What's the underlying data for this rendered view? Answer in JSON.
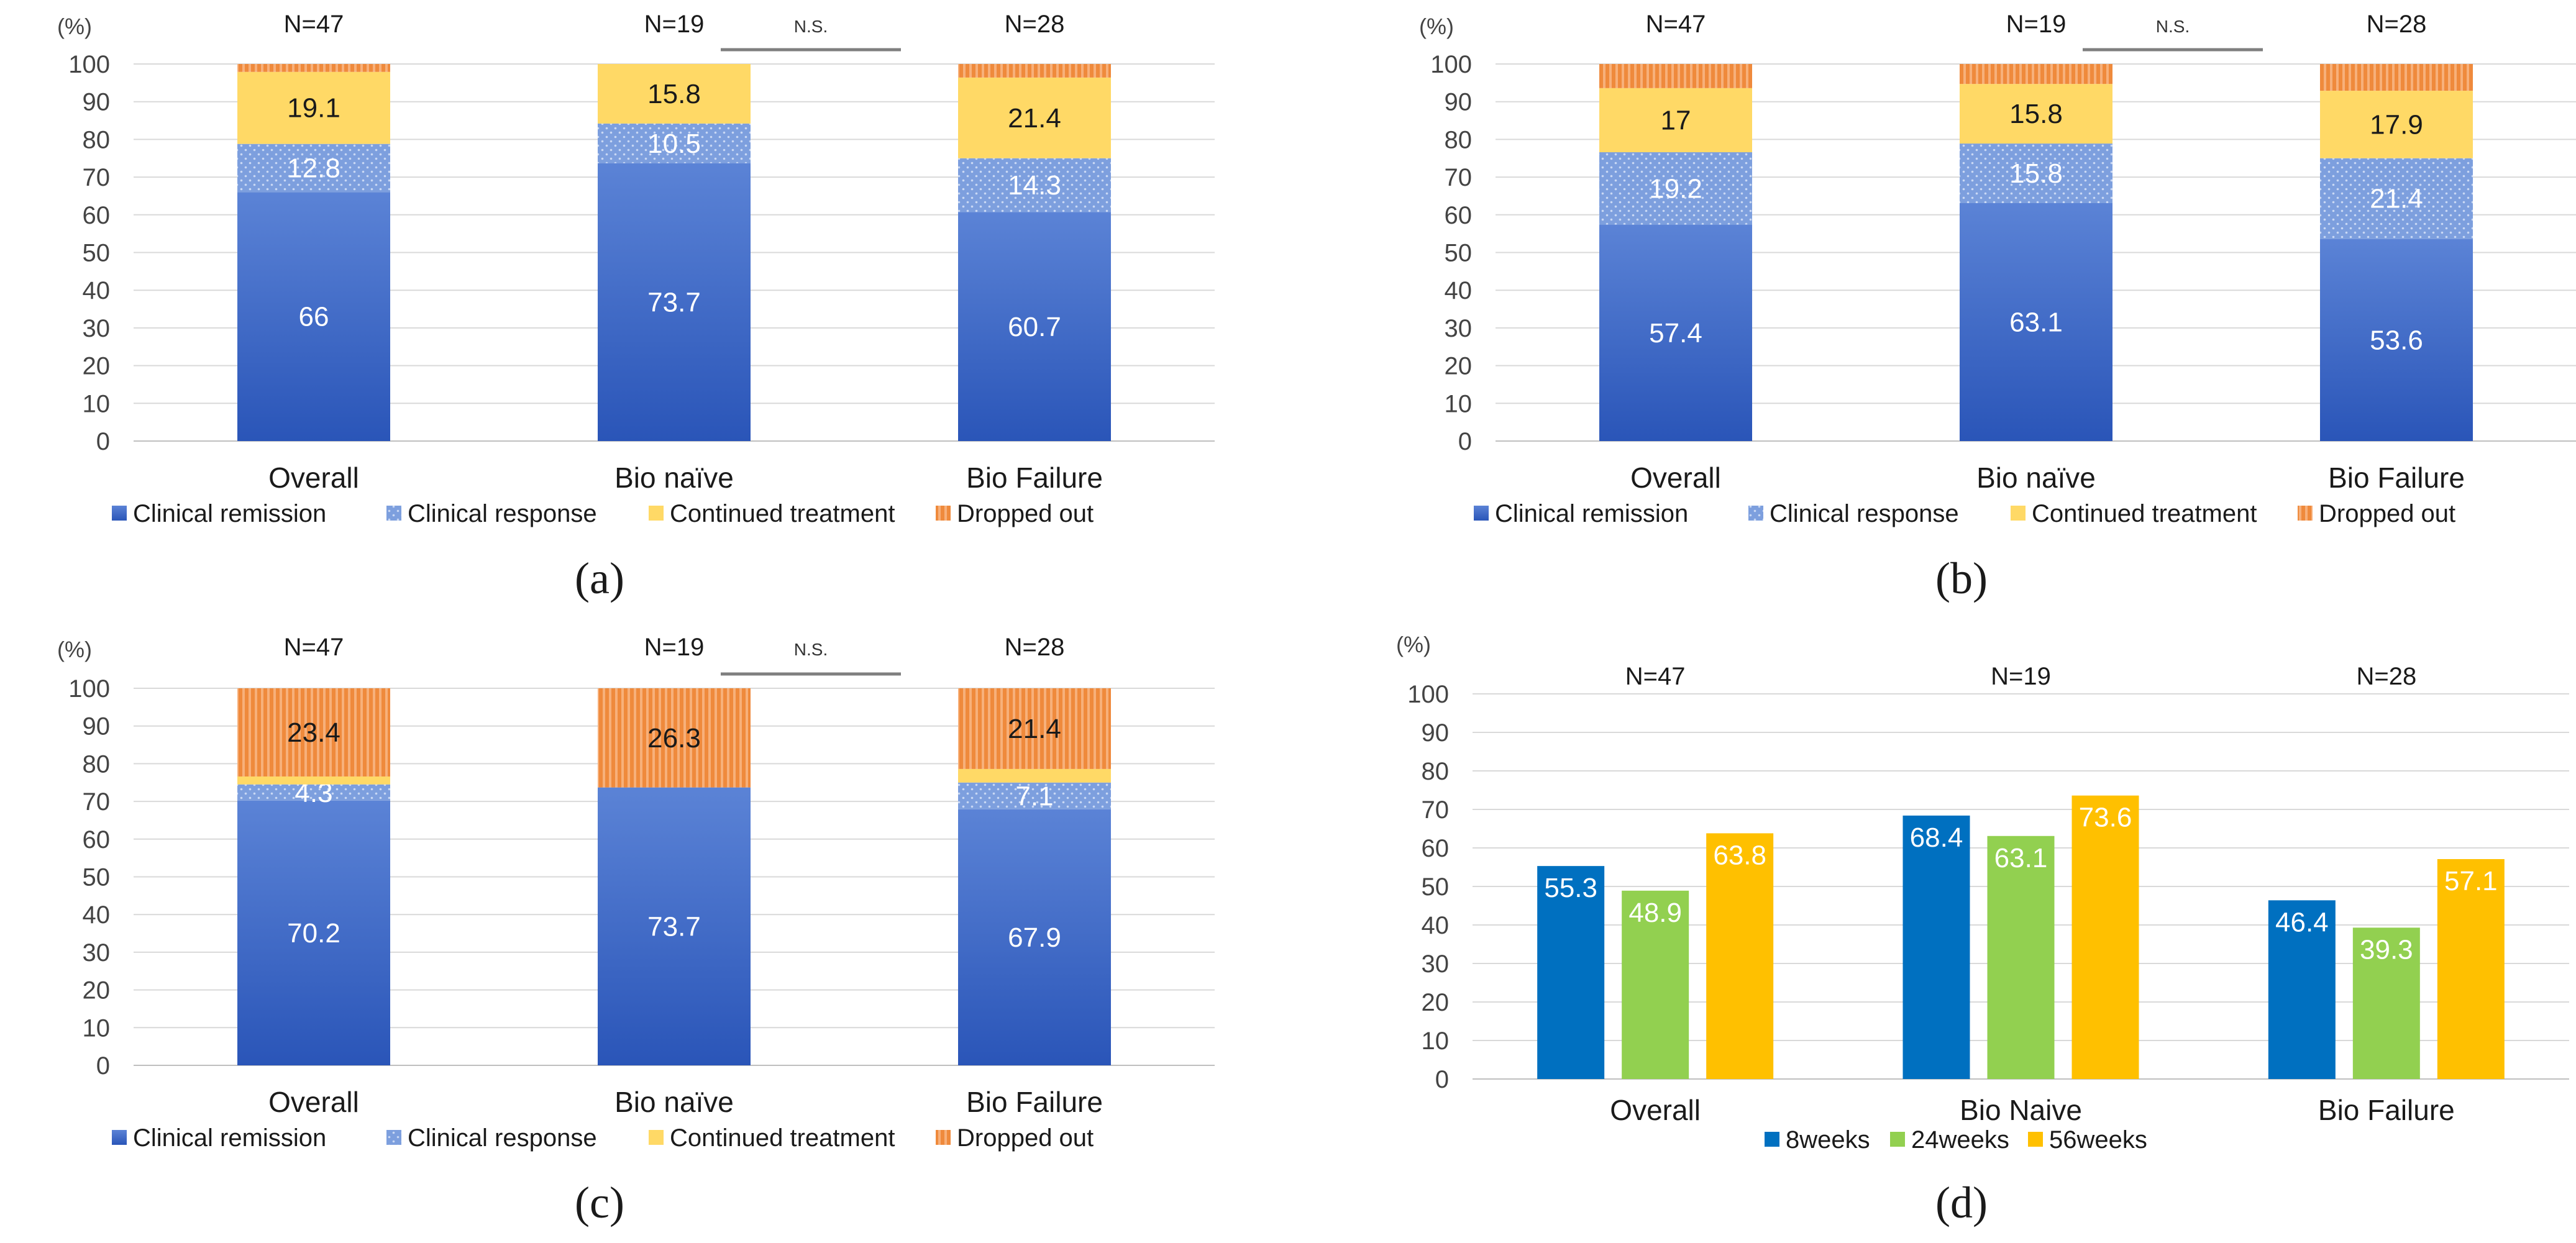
{
  "chart_data": [
    {
      "id": "a",
      "type": "stacked-bar",
      "panel_label": "(a)",
      "y_unit": "(%)",
      "ylim": [
        0,
        100
      ],
      "y_ticks": [
        0,
        10,
        20,
        30,
        40,
        50,
        60,
        70,
        80,
        90,
        100
      ],
      "categories": [
        "Overall",
        "Bio naïve",
        "Bio Failure"
      ],
      "n_labels": [
        "N=47",
        "N=19",
        "N=28"
      ],
      "ns_label": "N.S.",
      "legend_position": "bottom",
      "series": [
        {
          "name": "Clinical remission",
          "color": "#3a66c4",
          "values": [
            66,
            73.7,
            60.7
          ],
          "labels": [
            "66",
            "73.7",
            "60.7"
          ]
        },
        {
          "name": "Clinical response",
          "color": "#7d9fde",
          "values": [
            12.8,
            10.5,
            14.3
          ],
          "labels": [
            "12.8",
            "10.5",
            "14.3"
          ]
        },
        {
          "name": "Continued treatment",
          "color": "#ffd966",
          "values": [
            19.1,
            15.8,
            21.4
          ],
          "labels": [
            "19.1",
            "15.8",
            "21.4"
          ]
        },
        {
          "name": "Dropped out",
          "color": "#f4a460",
          "values": [
            2.1,
            0,
            3.6
          ],
          "labels": [
            "",
            "",
            ""
          ]
        }
      ]
    },
    {
      "id": "b",
      "type": "stacked-bar",
      "panel_label": "(b)",
      "y_unit": "(%)",
      "ylim": [
        0,
        100
      ],
      "y_ticks": [
        0,
        10,
        20,
        30,
        40,
        50,
        60,
        70,
        80,
        90,
        100
      ],
      "categories": [
        "Overall",
        "Bio naïve",
        "Bio Failure"
      ],
      "n_labels": [
        "N=47",
        "N=19",
        "N=28"
      ],
      "ns_label": "N.S.",
      "legend_position": "bottom",
      "series": [
        {
          "name": "Clinical remission",
          "color": "#3a66c4",
          "values": [
            57.4,
            63.1,
            53.6
          ],
          "labels": [
            "57.4",
            "63.1",
            "53.6"
          ]
        },
        {
          "name": "Clinical response",
          "color": "#7d9fde",
          "values": [
            19.2,
            15.8,
            21.4
          ],
          "labels": [
            "19.2",
            "15.8",
            "21.4"
          ]
        },
        {
          "name": "Continued treatment",
          "color": "#ffd966",
          "values": [
            17,
            15.8,
            17.9
          ],
          "labels": [
            "17",
            "15.8",
            "17.9"
          ]
        },
        {
          "name": "Dropped out",
          "color": "#f4a460",
          "values": [
            6.4,
            5.3,
            7.1
          ],
          "labels": [
            "",
            "",
            ""
          ]
        }
      ]
    },
    {
      "id": "c",
      "type": "stacked-bar",
      "panel_label": "(c)",
      "y_unit": "(%)",
      "ylim": [
        0,
        100
      ],
      "y_ticks": [
        0,
        10,
        20,
        30,
        40,
        50,
        60,
        70,
        80,
        90,
        100
      ],
      "categories": [
        "Overall",
        "Bio naïve",
        "Bio Failure"
      ],
      "n_labels": [
        "N=47",
        "N=19",
        "N=28"
      ],
      "ns_label": "N.S.",
      "legend_position": "bottom",
      "series": [
        {
          "name": "Clinical remission",
          "color": "#3a66c4",
          "values": [
            70.2,
            73.7,
            67.9
          ],
          "labels": [
            "70.2",
            "73.7",
            "67.9"
          ]
        },
        {
          "name": "Clinical response",
          "color": "#7d9fde",
          "values": [
            4.3,
            0,
            7.1
          ],
          "labels": [
            "4.3",
            "",
            "7.1"
          ]
        },
        {
          "name": "Continued treatment",
          "color": "#ffd966",
          "values": [
            2.1,
            0,
            3.6
          ],
          "labels": [
            "",
            "",
            ""
          ]
        },
        {
          "name": "Dropped out",
          "color": "#f4a460",
          "values": [
            23.4,
            26.3,
            21.4
          ],
          "labels": [
            "23.4",
            "26.3",
            "21.4"
          ]
        }
      ]
    },
    {
      "id": "d",
      "type": "bar",
      "panel_label": "(d)",
      "y_unit": "(%)",
      "ylim": [
        0,
        100
      ],
      "y_ticks": [
        0,
        10,
        20,
        30,
        40,
        50,
        60,
        70,
        80,
        90,
        100
      ],
      "categories": [
        "Overall",
        "Bio Naive",
        "Bio Failure"
      ],
      "n_labels": [
        "N=47",
        "N=19",
        "N=28"
      ],
      "legend_position": "bottom",
      "series": [
        {
          "name": "8weeks",
          "color": "#0070c0",
          "values": [
            55.3,
            68.4,
            46.4
          ],
          "labels": [
            "55.3",
            "68.4",
            "46.4"
          ]
        },
        {
          "name": "24weeks",
          "color": "#92d050",
          "values": [
            48.9,
            63.1,
            39.3
          ],
          "labels": [
            "48.9",
            "63.1",
            "39.3"
          ]
        },
        {
          "name": "56weeks",
          "color": "#ffc000",
          "values": [
            63.8,
            73.6,
            57.1
          ],
          "labels": [
            "63.8",
            "73.6",
            "57.1"
          ]
        }
      ]
    }
  ]
}
